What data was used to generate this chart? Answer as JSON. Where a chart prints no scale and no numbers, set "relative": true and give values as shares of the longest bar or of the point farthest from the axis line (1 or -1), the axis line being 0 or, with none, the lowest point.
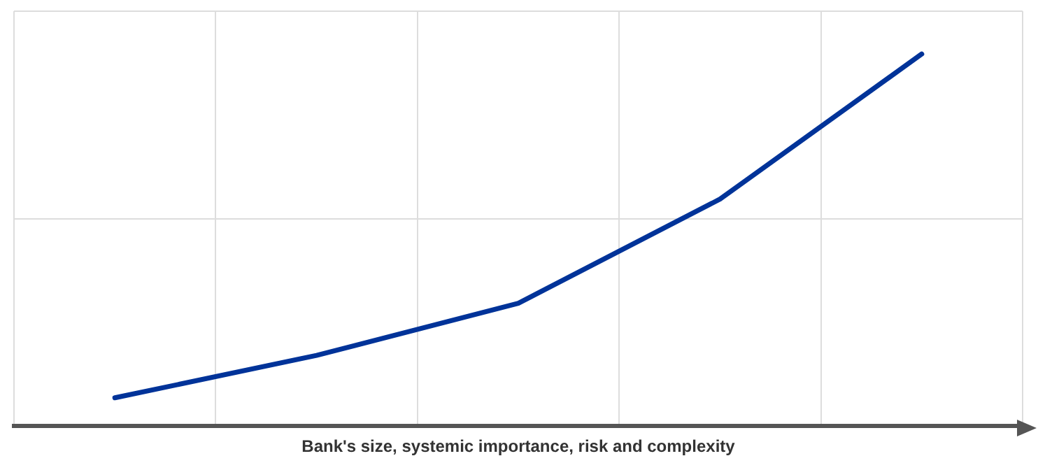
{
  "chart_data": {
    "type": "line",
    "xlabel": "Bank's size, systemic importance, risk and complexity",
    "categories": [
      null,
      null,
      null,
      null,
      null
    ],
    "relative": true,
    "series": [
      {
        "color": "#003399",
        "values": [
          0.076,
          0.19,
          0.33,
          0.61,
          1
        ]
      }
    ],
    "grid": true,
    "legend": false,
    "tick_labels": false,
    "marker": "none",
    "line_style": "solid"
  }
}
